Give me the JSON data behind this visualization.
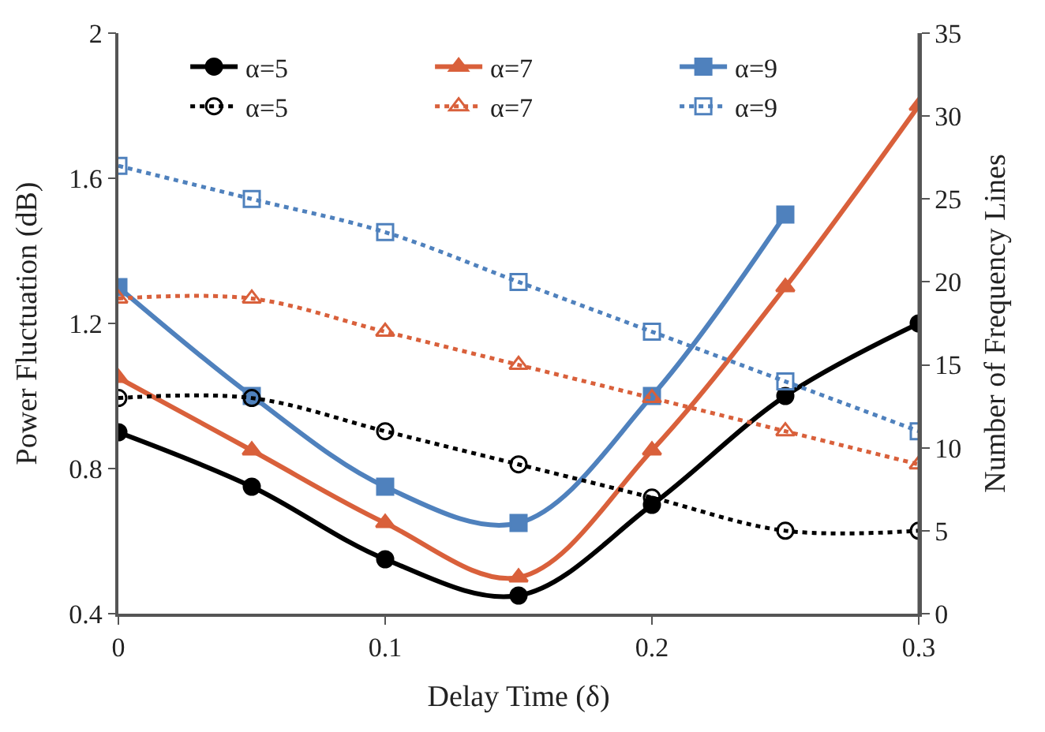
{
  "chart_data": {
    "type": "line",
    "xlabel": "Delay Time (δ)",
    "ylabel": "Power Fluctuation (dB)",
    "y2label": "Number of Frequency Lines",
    "x": [
      0,
      0.05,
      0.1,
      0.15,
      0.2,
      0.25,
      0.3
    ],
    "xlim": [
      0,
      0.3
    ],
    "xticks": [
      0,
      0.1,
      0.2,
      0.3
    ],
    "ylim": [
      0.4,
      2
    ],
    "yticks": [
      0.4,
      0.8,
      1.2,
      1.6,
      2
    ],
    "y2lim": [
      0,
      35
    ],
    "y2ticks": [
      0,
      5,
      10,
      15,
      20,
      25,
      30,
      35
    ],
    "legend": "top",
    "series": [
      {
        "name": "α=5",
        "color": "#000000",
        "marker": "circle",
        "line_style": "solid",
        "values": [
          0.9,
          0.75,
          0.55,
          0.45,
          0.7,
          1.0,
          1.2
        ]
      },
      {
        "name": "α=7",
        "color": "#d9603b",
        "marker": "triangle",
        "line_style": "solid",
        "values": [
          1.05,
          0.85,
          0.65,
          0.5,
          0.85,
          1.3,
          1.8
        ]
      },
      {
        "name": "α=9",
        "color": "#4f81bd",
        "marker": "square",
        "line_style": "solid",
        "values": [
          1.3,
          1.0,
          0.75,
          0.65,
          1.0,
          1.5,
          null
        ]
      },
      {
        "name": "α=5",
        "color": "#000000",
        "marker": "circle",
        "line_style": "dotted",
        "axis": "y2",
        "values": [
          13,
          13,
          11,
          9,
          7,
          5,
          5
        ]
      },
      {
        "name": "α=7",
        "color": "#d9603b",
        "marker": "triangle",
        "line_style": "dotted",
        "axis": "y2",
        "values": [
          19,
          19,
          17,
          15,
          13,
          11,
          9
        ]
      },
      {
        "name": "α=9",
        "color": "#4f81bd",
        "marker": "square",
        "line_style": "dotted",
        "axis": "y2",
        "values": [
          27,
          25,
          23,
          20,
          17,
          14,
          11
        ]
      }
    ]
  }
}
